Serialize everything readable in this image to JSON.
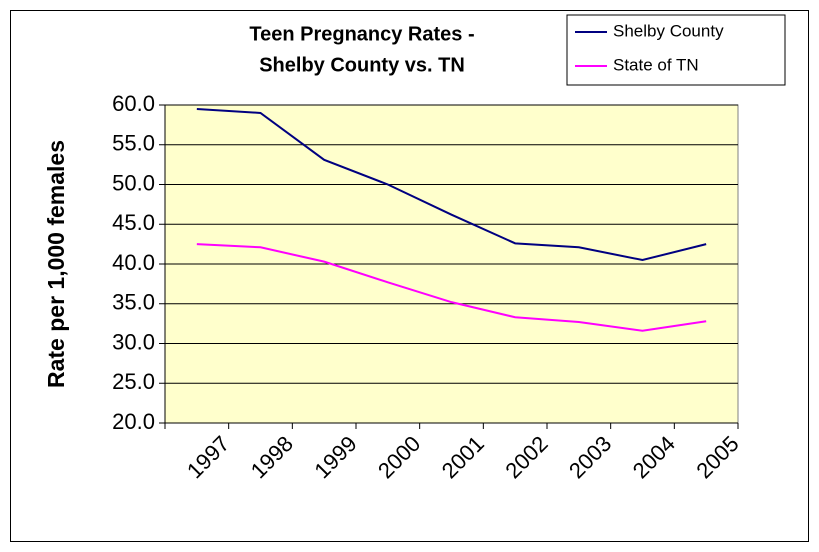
{
  "chart_data": {
    "type": "line",
    "title": [
      "Teen Pregnancy Rates -",
      "Shelby County vs. TN"
    ],
    "y_label": "Rate per 1,000 females",
    "categories": [
      "1997",
      "1998",
      "1999",
      "2000",
      "2001",
      "2002",
      "2003",
      "2004",
      "2005"
    ],
    "series": [
      {
        "name": "Shelby County",
        "color": "#000080",
        "values": [
          59.5,
          59.0,
          53.1,
          50.0,
          46.2,
          42.6,
          42.1,
          40.5,
          42.5
        ]
      },
      {
        "name": "State of TN",
        "color": "#ff00ff",
        "values": [
          42.5,
          42.1,
          40.3,
          37.7,
          35.2,
          33.3,
          32.7,
          31.6,
          32.8
        ]
      }
    ],
    "ylim": [
      20,
      60
    ],
    "yticks": [
      {
        "value": 20,
        "label": "20.0"
      },
      {
        "value": 25,
        "label": "25.0"
      },
      {
        "value": 30,
        "label": "30.0"
      },
      {
        "value": 35,
        "label": "35.0"
      },
      {
        "value": 40,
        "label": "40.0"
      },
      {
        "value": 45,
        "label": "45.0"
      },
      {
        "value": 50,
        "label": "50.0"
      },
      {
        "value": 55,
        "label": "55.0"
      },
      {
        "value": 60,
        "label": "60.0"
      }
    ],
    "grid": true,
    "legend": "top-right",
    "plot_background": "#ffffcc"
  }
}
